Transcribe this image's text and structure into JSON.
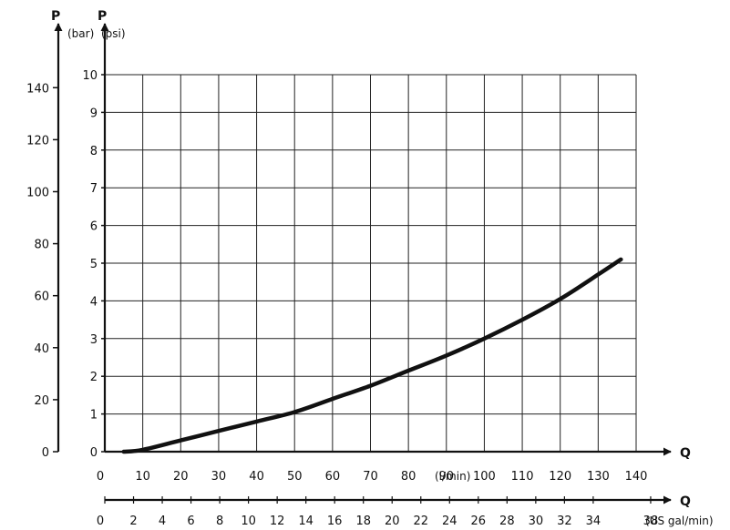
{
  "chart_data": {
    "type": "line",
    "title": "",
    "pressure_axis_bar": {
      "letter": "P",
      "unit": "(bar)",
      "range": [
        0,
        10
      ],
      "ticks": [
        "0",
        "1",
        "2",
        "3",
        "4",
        "5",
        "6",
        "7",
        "8",
        "9",
        "10"
      ]
    },
    "pressure_axis_psi": {
      "letter": "P",
      "unit": "(psi)",
      "ticks": [
        0,
        20,
        40,
        60,
        80,
        100,
        120,
        140
      ],
      "psi_per_bar": 14.5
    },
    "flow_axis_lpm": {
      "letter": "Q",
      "unit": "(l/min)",
      "range": [
        0,
        140
      ],
      "ticks": [
        0,
        10,
        20,
        30,
        40,
        50,
        60,
        70,
        80,
        90,
        100,
        110,
        120,
        130,
        140
      ]
    },
    "flow_axis_usgpm": {
      "letter": "Q",
      "unit": "(US gal/min)",
      "ticks": [
        0,
        2,
        4,
        6,
        8,
        10,
        12,
        14,
        16,
        18,
        20,
        22,
        24,
        26,
        28,
        30,
        32,
        34,
        38
      ],
      "lpm_per_usgal": 3.785
    },
    "grid": true,
    "series": [
      {
        "x": [
          5,
          10,
          20,
          30,
          40,
          50,
          60,
          70,
          80,
          90,
          100,
          110,
          120,
          130,
          136
        ],
        "y": [
          0,
          0.05,
          0.3,
          0.55,
          0.8,
          1.05,
          1.4,
          1.75,
          2.15,
          2.55,
          3.0,
          3.5,
          4.05,
          4.7,
          5.1
        ],
        "color": "#111111"
      }
    ]
  }
}
